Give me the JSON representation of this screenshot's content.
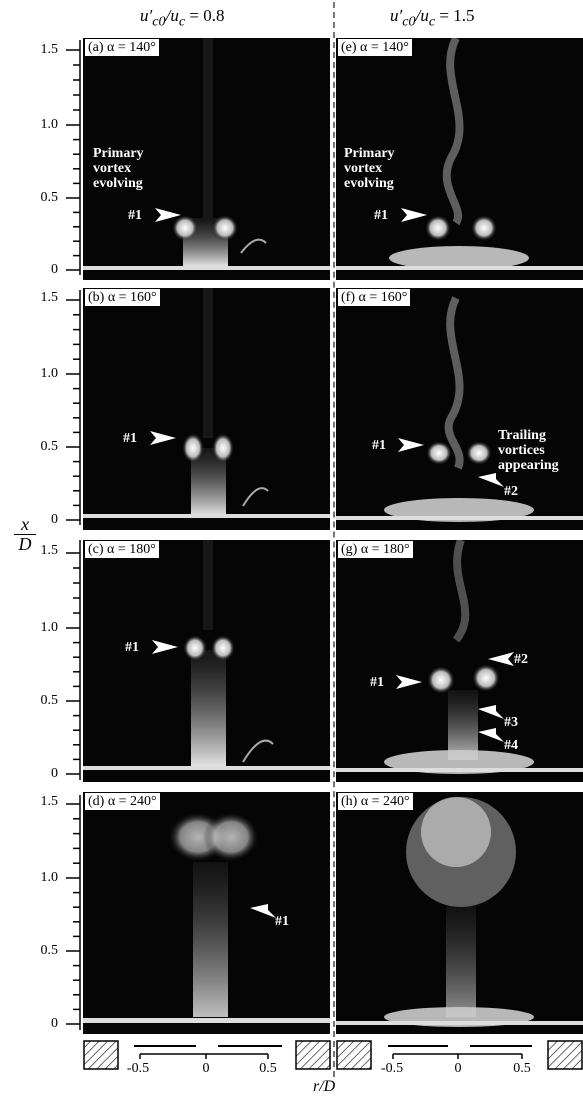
{
  "column_headers": {
    "left": {
      "prefix": "u′",
      "sub1": "c0",
      "mid": "/u",
      "sub2": "c",
      "suffix": " = 0.8"
    },
    "right": {
      "prefix": "u′",
      "sub1": "c0",
      "mid": "/u",
      "sub2": "c",
      "suffix": " = 1.5"
    }
  },
  "axis": {
    "y_label_top": "x",
    "y_label_bottom": "D",
    "x_label": "r/D",
    "y_ticks": [
      "1.5",
      "1.0",
      "0.5",
      "0"
    ],
    "x_ticks": [
      "-0.5",
      "0",
      "0.5"
    ]
  },
  "panels": [
    {
      "label": "(a) α = 140°"
    },
    {
      "label": "(b) α = 160°"
    },
    {
      "label": "(c) α = 180°"
    },
    {
      "label": "(d) α = 240°"
    },
    {
      "label": "(e) α = 140°"
    },
    {
      "label": "(f) α = 160°"
    },
    {
      "label": "(g) α = 180°"
    },
    {
      "label": "(h) α = 240°"
    }
  ],
  "annotations": {
    "a_text": "Primary\nvortex\nevolving",
    "a_marker": "#1",
    "b_marker": "#1",
    "c_marker": "#1",
    "d_marker": "#1",
    "e_text": "Primary\nvortex\nevolving",
    "e_marker": "#1",
    "f_text": "Trailing\nvortices\nappearing",
    "f_marker1": "#1",
    "f_marker2": "#2",
    "g_marker1": "#1",
    "g_marker2": "#2",
    "g_marker3": "#3",
    "g_marker4": "#4"
  }
}
